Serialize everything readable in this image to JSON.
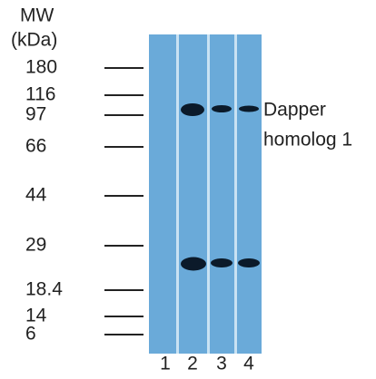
{
  "header": {
    "line1": "MW",
    "line2": "(kDa)"
  },
  "markers": [
    "180",
    "116",
    "97",
    "66",
    "44",
    "29",
    "18.4",
    "14",
    "6"
  ],
  "lanes": [
    "1",
    "2",
    "3",
    "4"
  ],
  "annotation": {
    "line1": "Dapper",
    "line2": "homolog 1"
  }
}
